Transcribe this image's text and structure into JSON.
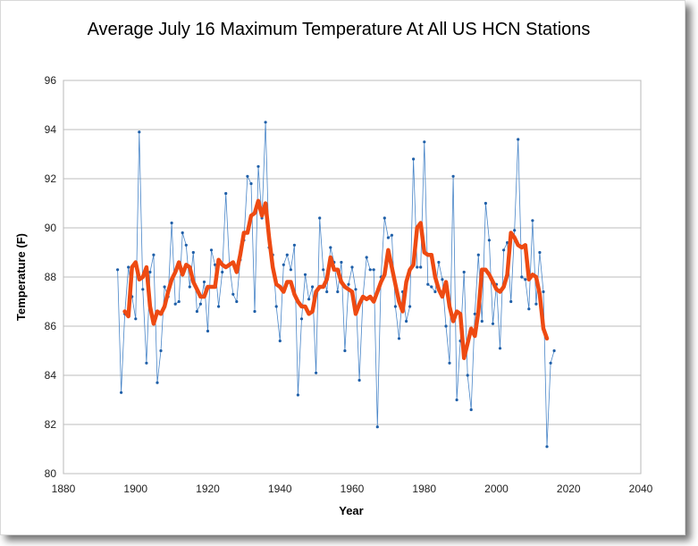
{
  "chart_data": {
    "type": "line",
    "title": "Average July 16 Maximum Temperature At All US HCN Stations",
    "xlabel": "Year",
    "ylabel": "Temperature   (F)",
    "xlim": [
      1880,
      2040
    ],
    "ylim": [
      80,
      96
    ],
    "xticks": [
      1880,
      1900,
      1920,
      1940,
      1960,
      1980,
      2000,
      2020,
      2040
    ],
    "yticks": [
      80,
      82,
      84,
      86,
      88,
      90,
      92,
      94,
      96
    ],
    "grid": true,
    "legend": "none",
    "series": [
      {
        "style": "thin-line-markers",
        "color": "#4a86c8",
        "x": [
          1895,
          1896,
          1897,
          1898,
          1899,
          1900,
          1901,
          1902,
          1903,
          1904,
          1905,
          1906,
          1907,
          1908,
          1909,
          1910,
          1911,
          1912,
          1913,
          1914,
          1915,
          1916,
          1917,
          1918,
          1919,
          1920,
          1921,
          1922,
          1923,
          1924,
          1925,
          1926,
          1927,
          1928,
          1929,
          1930,
          1931,
          1932,
          1933,
          1934,
          1935,
          1936,
          1937,
          1938,
          1939,
          1940,
          1941,
          1942,
          1943,
          1944,
          1945,
          1946,
          1947,
          1948,
          1949,
          1950,
          1951,
          1952,
          1953,
          1954,
          1955,
          1956,
          1957,
          1958,
          1959,
          1960,
          1961,
          1962,
          1963,
          1964,
          1965,
          1966,
          1967,
          1968,
          1969,
          1970,
          1971,
          1972,
          1973,
          1974,
          1975,
          1976,
          1977,
          1978,
          1979,
          1980,
          1981,
          1982,
          1983,
          1984,
          1985,
          1986,
          1987,
          1988,
          1989,
          1990,
          1991,
          1992,
          1993,
          1994,
          1995,
          1996,
          1997,
          1998,
          1999,
          2000,
          2001,
          2002,
          2003,
          2004,
          2005,
          2006,
          2007,
          2008,
          2009,
          2010,
          2011,
          2012,
          2013,
          2014,
          2015,
          2016
        ],
        "y": [
          88.3,
          83.3,
          86.5,
          88.4,
          87.2,
          86.3,
          93.9,
          87.5,
          84.5,
          88.2,
          88.9,
          83.7,
          85.0,
          87.6,
          87.2,
          90.2,
          86.9,
          87.0,
          89.8,
          89.3,
          87.6,
          89.0,
          86.6,
          86.9,
          87.8,
          85.8,
          89.1,
          88.5,
          86.8,
          88.2,
          91.4,
          88.5,
          87.3,
          87.0,
          88.7,
          89.5,
          92.1,
          91.8,
          86.6,
          92.5,
          90.4,
          94.3,
          89.2,
          88.9,
          86.8,
          85.4,
          88.5,
          88.9,
          88.3,
          89.3,
          83.2,
          86.3,
          88.1,
          87.1,
          87.6,
          84.1,
          90.4,
          88.3,
          87.4,
          89.2,
          88.6,
          87.4,
          88.6,
          85.0,
          87.7,
          88.4,
          87.5,
          83.8,
          87.2,
          88.8,
          88.3,
          88.3,
          81.9,
          88.0,
          90.4,
          89.6,
          89.7,
          86.8,
          85.5,
          87.4,
          86.2,
          86.8,
          92.8,
          88.4,
          88.4,
          93.5,
          87.7,
          87.6,
          87.4,
          88.6,
          87.9,
          86.0,
          84.5,
          92.1,
          83.0,
          85.4,
          88.2,
          84.0,
          82.6,
          86.5,
          88.9,
          86.2,
          91.0,
          89.5,
          86.1,
          87.7,
          85.1,
          89.1,
          89.4,
          87.0,
          89.9,
          93.6,
          88.0,
          87.9,
          86.7,
          90.3,
          86.9,
          89.0,
          87.4,
          81.1,
          84.5,
          85.0
        ]
      },
      {
        "style": "thick-smoothed",
        "color": "#ee4a12",
        "x": [
          1897,
          1898,
          1899,
          1900,
          1901,
          1902,
          1903,
          1904,
          1905,
          1906,
          1907,
          1908,
          1909,
          1910,
          1911,
          1912,
          1913,
          1914,
          1915,
          1916,
          1917,
          1918,
          1919,
          1920,
          1921,
          1922,
          1923,
          1924,
          1925,
          1926,
          1927,
          1928,
          1929,
          1930,
          1931,
          1932,
          1933,
          1934,
          1935,
          1936,
          1937,
          1938,
          1939,
          1940,
          1941,
          1942,
          1943,
          1944,
          1945,
          1946,
          1947,
          1948,
          1949,
          1950,
          1951,
          1952,
          1953,
          1954,
          1955,
          1956,
          1957,
          1958,
          1959,
          1960,
          1961,
          1962,
          1963,
          1964,
          1965,
          1966,
          1967,
          1968,
          1969,
          1970,
          1971,
          1972,
          1973,
          1974,
          1975,
          1976,
          1977,
          1978,
          1979,
          1980,
          1981,
          1982,
          1983,
          1984,
          1985,
          1986,
          1987,
          1988,
          1989,
          1990,
          1991,
          1992,
          1993,
          1994,
          1995,
          1996,
          1997,
          1998,
          1999,
          2000,
          2001,
          2002,
          2003,
          2004,
          2005,
          2006,
          2007,
          2008,
          2009,
          2010,
          2011,
          2012,
          2013,
          2014
        ],
        "y": [
          86.6,
          86.4,
          88.4,
          88.6,
          87.9,
          88.0,
          88.4,
          86.8,
          86.1,
          86.6,
          86.5,
          86.8,
          87.4,
          87.9,
          88.2,
          88.6,
          88.1,
          88.5,
          88.4,
          87.8,
          87.5,
          87.2,
          87.2,
          87.6,
          87.6,
          87.6,
          88.7,
          88.5,
          88.4,
          88.5,
          88.6,
          88.2,
          88.9,
          89.8,
          89.8,
          90.5,
          90.6,
          91.1,
          90.5,
          91.0,
          89.6,
          88.4,
          87.7,
          87.6,
          87.4,
          87.8,
          87.8,
          87.3,
          87.0,
          86.8,
          86.8,
          86.5,
          86.6,
          87.4,
          87.6,
          87.6,
          87.9,
          88.8,
          88.3,
          88.3,
          87.8,
          87.6,
          87.5,
          87.4,
          86.5,
          86.9,
          87.2,
          87.1,
          87.2,
          87.0,
          87.4,
          87.8,
          88.1,
          89.1,
          88.4,
          87.7,
          87.0,
          86.6,
          87.8,
          88.3,
          88.5,
          90.0,
          90.2,
          89.0,
          88.9,
          88.9,
          88.0,
          87.5,
          87.2,
          87.8,
          86.8,
          86.2,
          86.6,
          86.5,
          84.7,
          85.3,
          85.9,
          85.6,
          86.6,
          88.3,
          88.3,
          88.1,
          87.8,
          87.5,
          87.4,
          87.6,
          88.1,
          89.8,
          89.6,
          89.3,
          89.2,
          89.3,
          87.9,
          88.1,
          88.0,
          87.3,
          85.9,
          85.5
        ]
      }
    ]
  }
}
